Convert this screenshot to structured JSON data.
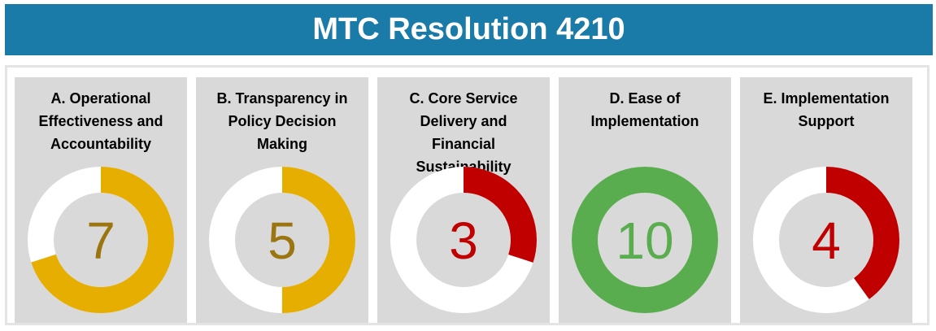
{
  "chart_data": {
    "type": "gauge",
    "title": "MTC Resolution 4210",
    "categories": [
      "A. Operational Effectiveness and Accountability",
      "B. Transparency  in Policy Decision Making",
      "C. Core Service Delivery and Financial Sustainability",
      "D. Ease of Implementation",
      "E. Implementation Support"
    ],
    "values": [
      7,
      5,
      3,
      10,
      4
    ],
    "colors": [
      "#e6ae00",
      "#e6ae00",
      "#c00000",
      "#5aad4e",
      "#c00000"
    ],
    "label_colors": [
      "#9a7510",
      "#9a7510",
      "#c00000",
      "#5aad4e",
      "#c00000"
    ],
    "ylim": [
      0,
      10
    ]
  }
}
